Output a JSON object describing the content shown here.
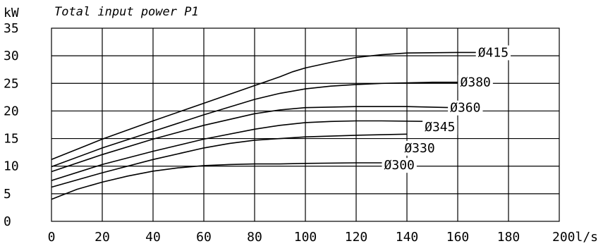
{
  "chart_data": {
    "type": "line",
    "title": "Total input power P1",
    "ylabel": "kW",
    "xlabel": "",
    "x_tick_labels": [
      "0",
      "20",
      "40",
      "60",
      "80",
      "100",
      "120",
      "140",
      "160",
      "180",
      "200l/s"
    ],
    "y_tick_labels": [
      "0",
      "5",
      "10",
      "15",
      "20",
      "25",
      "30",
      "35"
    ],
    "xlim": [
      0,
      200
    ],
    "ylim": [
      0,
      35
    ],
    "grid": true,
    "series": [
      {
        "name": "Ø415",
        "points": [
          [
            0,
            11.2
          ],
          [
            20,
            14.9
          ],
          [
            40,
            18.2
          ],
          [
            60,
            21.4
          ],
          [
            80,
            24.6
          ],
          [
            90,
            26.2
          ],
          [
            95,
            27.1
          ],
          [
            100,
            27.8
          ],
          [
            110,
            28.8
          ],
          [
            120,
            29.7
          ],
          [
            130,
            30.2
          ],
          [
            140,
            30.5
          ],
          [
            160,
            30.6
          ],
          [
            168,
            30.6
          ]
        ]
      },
      {
        "name": "Ø380",
        "points": [
          [
            0,
            9.9
          ],
          [
            20,
            13.3
          ],
          [
            40,
            16.3
          ],
          [
            60,
            19.3
          ],
          [
            80,
            22.1
          ],
          [
            90,
            23.2
          ],
          [
            100,
            24.0
          ],
          [
            110,
            24.5
          ],
          [
            120,
            24.8
          ],
          [
            130,
            25.0
          ],
          [
            140,
            25.1
          ],
          [
            150,
            25.2
          ],
          [
            162,
            25.2
          ]
        ]
      },
      {
        "name": "Ø360",
        "points": [
          [
            0,
            9.0
          ],
          [
            20,
            12.1
          ],
          [
            40,
            14.9
          ],
          [
            60,
            17.4
          ],
          [
            80,
            19.5
          ],
          [
            90,
            20.2
          ],
          [
            100,
            20.6
          ],
          [
            110,
            20.7
          ],
          [
            120,
            20.8
          ],
          [
            140,
            20.8
          ],
          [
            158,
            20.6
          ]
        ]
      },
      {
        "name": "Ø345",
        "points": [
          [
            0,
            7.4
          ],
          [
            20,
            10.3
          ],
          [
            40,
            12.7
          ],
          [
            60,
            14.9
          ],
          [
            80,
            16.7
          ],
          [
            90,
            17.4
          ],
          [
            100,
            17.9
          ],
          [
            110,
            18.1
          ],
          [
            120,
            18.2
          ],
          [
            130,
            18.2
          ],
          [
            150,
            18.1
          ]
        ]
      },
      {
        "name": "Ø330",
        "points": [
          [
            0,
            6.2
          ],
          [
            20,
            8.8
          ],
          [
            40,
            11.2
          ],
          [
            60,
            13.3
          ],
          [
            70,
            14.1
          ],
          [
            80,
            14.7
          ],
          [
            90,
            15.0
          ],
          [
            100,
            15.3
          ],
          [
            120,
            15.6
          ],
          [
            140,
            15.8
          ]
        ]
      },
      {
        "name": "Ø300",
        "points": [
          [
            0,
            4.0
          ],
          [
            10,
            5.8
          ],
          [
            20,
            7.1
          ],
          [
            30,
            8.2
          ],
          [
            40,
            9.1
          ],
          [
            50,
            9.7
          ],
          [
            60,
            10.1
          ],
          [
            70,
            10.3
          ],
          [
            80,
            10.4
          ],
          [
            90,
            10.4
          ],
          [
            100,
            10.5
          ],
          [
            120,
            10.6
          ],
          [
            132,
            10.6
          ]
        ]
      }
    ],
    "series_labels": [
      {
        "text": "Ø415",
        "x": 174,
        "y": 30.6
      },
      {
        "text": "Ø380",
        "x": 167,
        "y": 25.2
      },
      {
        "text": "Ø360",
        "x": 163,
        "y": 20.6
      },
      {
        "text": "Ø345",
        "x": 153,
        "y": 17.1
      },
      {
        "text": "Ø330",
        "x": 145,
        "y": 13.3
      },
      {
        "text": "Ø300",
        "x": 137,
        "y": 10.2
      }
    ]
  }
}
